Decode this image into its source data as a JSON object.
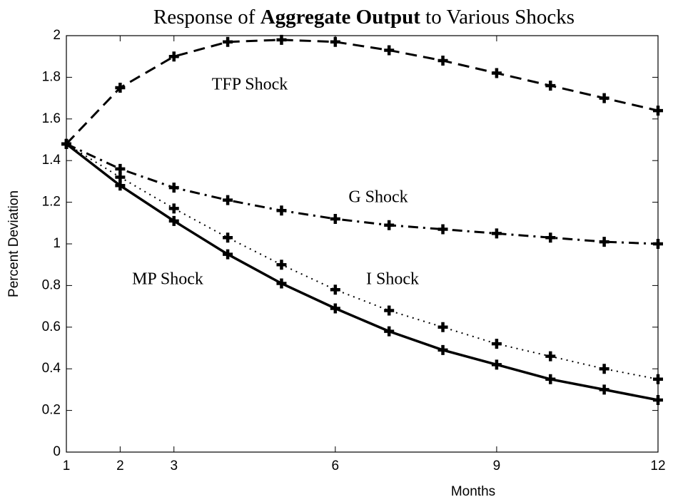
{
  "chart_data": {
    "type": "line",
    "title": [
      {
        "text": "Response of ",
        "bold": false
      },
      {
        "text": "Aggregate Output",
        "bold": true
      },
      {
        "text": " to Various Shocks",
        "bold": false
      }
    ],
    "xlabel": "Months",
    "ylabel": "Percent Deviation",
    "x": [
      1,
      2,
      3,
      4,
      5,
      6,
      7,
      8,
      9,
      10,
      11,
      12
    ],
    "xlim": [
      1,
      12
    ],
    "xticks": [
      1,
      2,
      3,
      6,
      9,
      12
    ],
    "ylim": [
      0,
      2
    ],
    "yticks": [
      0,
      0.2,
      0.4,
      0.6,
      0.8,
      1,
      1.2,
      1.4,
      1.6,
      1.8,
      2
    ],
    "grid": false,
    "marker": "plus",
    "series": [
      {
        "name": "TFP Shock",
        "color": "#000000",
        "style": "dashed",
        "values": [
          1.48,
          1.75,
          1.9,
          1.97,
          1.98,
          1.97,
          1.93,
          1.88,
          1.82,
          1.76,
          1.7,
          1.64
        ]
      },
      {
        "name": "G Shock",
        "color": "#000000",
        "style": "dashdot",
        "values": [
          1.48,
          1.36,
          1.27,
          1.21,
          1.16,
          1.12,
          1.09,
          1.07,
          1.05,
          1.03,
          1.01,
          1.0
        ]
      },
      {
        "name": "MP Shock",
        "color": "#000000",
        "style": "solid",
        "values": [
          1.48,
          1.28,
          1.11,
          0.95,
          0.81,
          0.69,
          0.58,
          0.49,
          0.42,
          0.35,
          0.3,
          0.25
        ]
      },
      {
        "name": "I Shock",
        "color": "#000000",
        "style": "dotted",
        "values": [
          1.48,
          1.32,
          1.17,
          1.03,
          0.9,
          0.78,
          0.68,
          0.6,
          0.52,
          0.46,
          0.4,
          0.35
        ]
      }
    ]
  }
}
